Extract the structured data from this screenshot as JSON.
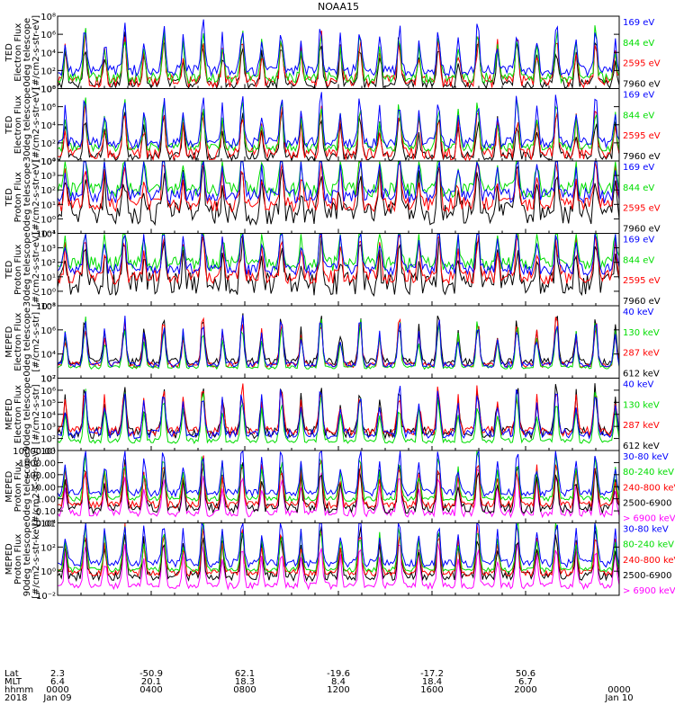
{
  "chart_data": {
    "type": "line",
    "title": "NOAA15",
    "panels": [
      {
        "ylabel_lines": [
          "TED",
          "Electron Flux",
          "0deg telescope",
          "[#/cm2-s-str-eV]"
        ],
        "ytick_labels": [
          "10⁰",
          "10²",
          "10⁴",
          "10⁶",
          "10⁸"
        ],
        "ylim_exp": [
          0,
          8
        ],
        "series": [
          {
            "name": "7960 eV",
            "color": "#000000",
            "base": 0.5,
            "amp": 0.5
          },
          {
            "name": "2595 eV",
            "color": "#ff0000",
            "base": 0.8,
            "amp": 0.7
          },
          {
            "name": "844 eV",
            "color": "#00dd00",
            "base": 1.2,
            "amp": 0.6
          },
          {
            "name": "169 eV",
            "color": "#0000ff",
            "base": 2.0,
            "amp": 0.6
          }
        ]
      },
      {
        "ylabel_lines": [
          "TED",
          "Electron Flux",
          "30deg telescope",
          "[#/cm2-s-str-eV]"
        ],
        "ytick_labels": [
          "10⁰",
          "10²",
          "10⁴",
          "10⁶",
          "10⁸"
        ],
        "ylim_exp": [
          0,
          8
        ],
        "series": [
          {
            "name": "7960 eV",
            "color": "#000000",
            "base": 0.5,
            "amp": 0.5
          },
          {
            "name": "2595 eV",
            "color": "#ff0000",
            "base": 0.8,
            "amp": 0.7
          },
          {
            "name": "844 eV",
            "color": "#00dd00",
            "base": 1.5,
            "amp": 0.5
          },
          {
            "name": "169 eV",
            "color": "#0000ff",
            "base": 2.0,
            "amp": 0.6
          }
        ]
      },
      {
        "ylabel_lines": [
          "TED",
          "Proton Flux",
          "0deg telescope",
          "[#/cm2-s-str-eV]"
        ],
        "ytick_labels": [
          "10⁻¹",
          "10⁰",
          "10¹",
          "10²",
          "10³",
          "10⁴"
        ],
        "ylim_exp": [
          -1,
          4
        ],
        "series": [
          {
            "name": "7960 eV",
            "color": "#000000",
            "base": 0.4,
            "amp": 0.8
          },
          {
            "name": "2595 eV",
            "color": "#ff0000",
            "base": 1.0,
            "amp": 0.5
          },
          {
            "name": "844 eV",
            "color": "#00dd00",
            "base": 2.0,
            "amp": 0.5
          },
          {
            "name": "169 eV",
            "color": "#0000ff",
            "base": 1.6,
            "amp": 0.5
          }
        ]
      },
      {
        "ylabel_lines": [
          "TED",
          "Proton Flux",
          "30deg telescope",
          "[#/cm2-s-str-eV]"
        ],
        "ytick_labels": [
          "10⁻¹",
          "10⁰",
          "10¹",
          "10²",
          "10³",
          "10⁴"
        ],
        "ylim_exp": [
          -1,
          4
        ],
        "series": [
          {
            "name": "7960 eV",
            "color": "#000000",
            "base": 0.5,
            "amp": 0.8
          },
          {
            "name": "2595 eV",
            "color": "#ff0000",
            "base": 1.0,
            "amp": 0.5
          },
          {
            "name": "844 eV",
            "color": "#00dd00",
            "base": 1.9,
            "amp": 0.5
          },
          {
            "name": "169 eV",
            "color": "#0000ff",
            "base": 1.5,
            "amp": 0.4
          }
        ]
      },
      {
        "ylabel_lines": [
          "MEPED",
          "Electron Flux",
          "0deg telescope",
          "[#/cm2-s-str]"
        ],
        "ytick_labels": [
          "10²",
          "10⁴",
          "10⁶",
          "10⁸"
        ],
        "ylim_exp": [
          1,
          9
        ],
        "series": [
          {
            "name": "612 keV",
            "color": "#000000",
            "base": 2.8,
            "amp": 0.4
          },
          {
            "name": "287 keV",
            "color": "#ff0000",
            "base": 2.5,
            "amp": 0.3
          },
          {
            "name": "130 keV",
            "color": "#00dd00",
            "base": 2.2,
            "amp": 0.2
          },
          {
            "name": "40 keV",
            "color": "#0000ff",
            "base": 2.5,
            "amp": 0.3
          }
        ]
      },
      {
        "ylabel_lines": [
          "MEPED",
          "Electron Flux",
          "90deg telescope",
          "[#/cm2-s-str]"
        ],
        "ytick_labels": [
          "10¹",
          "10²",
          "10³",
          "10⁴",
          "10⁵",
          "10⁶",
          "10⁷"
        ],
        "ylim_exp": [
          1,
          7
        ],
        "series": [
          {
            "name": "612 keV",
            "color": "#000000",
            "base": 2.5,
            "amp": 0.5
          },
          {
            "name": "287 keV",
            "color": "#ff0000",
            "base": 2.6,
            "amp": 0.4
          },
          {
            "name": "130 keV",
            "color": "#00dd00",
            "base": 1.8,
            "amp": 0.2
          },
          {
            "name": "40 keV",
            "color": "#0000ff",
            "base": 2.4,
            "amp": 0.4
          }
        ]
      },
      {
        "ylabel_lines": [
          "MEPED",
          "Proton Flux",
          "0deg telescope",
          "[#/cm2-s-str-keV]"
        ],
        "ytick_labels": [
          "0.01",
          "0.10",
          "1.00",
          "10.00",
          "100.00",
          "1000.00",
          "10000.00"
        ],
        "ylim_exp": [
          -2,
          4
        ],
        "series": [
          {
            "name": "> 6900 keV",
            "color": "#ff00ff",
            "base": -1.2,
            "amp": 0.3
          },
          {
            "name": "2500-6900 keV",
            "color": "#000000",
            "base": -0.8,
            "amp": 0.4
          },
          {
            "name": "240-800 keV",
            "color": "#ff0000",
            "base": -0.5,
            "amp": 0.3
          },
          {
            "name": "80-240 keV",
            "color": "#00dd00",
            "base": 0.0,
            "amp": 0.2
          },
          {
            "name": "30-80 keV",
            "color": "#0000ff",
            "base": 0.5,
            "amp": 0.3
          }
        ]
      },
      {
        "ylabel_lines": [
          "MEPED",
          "Proton Flux",
          "90deg telescope",
          "[#/cm2-s-str-keV]"
        ],
        "ytick_labels": [
          "10⁻²",
          "10⁰",
          "10²",
          "10⁴"
        ],
        "ylim_exp": [
          -3,
          6
        ],
        "series": [
          {
            "name": "> 6900 keV",
            "color": "#ff00ff",
            "base": -1.8,
            "amp": 0.4
          },
          {
            "name": "2500-6900 keV",
            "color": "#000000",
            "base": -0.6,
            "amp": 0.6
          },
          {
            "name": "240-800 keV",
            "color": "#ff0000",
            "base": -0.2,
            "amp": 0.4
          },
          {
            "name": "80-240 keV",
            "color": "#00dd00",
            "base": 0.2,
            "amp": 0.3
          },
          {
            "name": "30-80 keV",
            "color": "#0000ff",
            "base": 1.0,
            "amp": 0.5
          }
        ]
      }
    ],
    "xaxis": {
      "row_labels": [
        "Lat",
        "MLT",
        "hhmm",
        "2018"
      ],
      "ticks": [
        {
          "lat": "2.3",
          "mlt": "6.4",
          "hhmm": "0000",
          "date": "Jan 09"
        },
        {
          "lat": "-50.9",
          "mlt": "20.1",
          "hhmm": "0400",
          "date": ""
        },
        {
          "lat": "62.1",
          "mlt": "18.3",
          "hhmm": "0800",
          "date": ""
        },
        {
          "lat": "-19.6",
          "mlt": "8.4",
          "hhmm": "1200",
          "date": ""
        },
        {
          "lat": "-17.2",
          "mlt": "18.4",
          "hhmm": "1600",
          "date": ""
        },
        {
          "lat": "50.6",
          "mlt": "6.7",
          "hhmm": "2000",
          "date": ""
        },
        {
          "lat": "",
          "mlt": "",
          "hhmm": "0000",
          "date": "Jan 10"
        }
      ]
    }
  }
}
